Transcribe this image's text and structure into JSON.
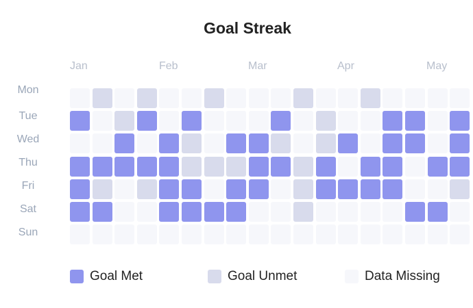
{
  "colors": {
    "met": "#8f95ee",
    "unmet": "#d8dbec",
    "missing": "#f6f7fb"
  },
  "chart_data": {
    "type": "heatmap",
    "title": "Goal Streak",
    "months": [
      "Jan",
      "Feb",
      "Mar",
      "Apr",
      "May"
    ],
    "days": [
      "Mon",
      "Tue",
      "Wed",
      "Thu",
      "Fri",
      "Sat",
      "Sun"
    ],
    "legend": [
      {
        "key": "met",
        "label": "Goal Met"
      },
      {
        "key": "unmet",
        "label": "Goal Unmet"
      },
      {
        "key": "missing",
        "label": "Data Missing"
      }
    ],
    "grid": [
      [
        "missing",
        "unmet",
        "missing",
        "unmet",
        "missing",
        "missing",
        "unmet",
        "missing",
        "missing",
        "missing",
        "unmet",
        "missing",
        "missing",
        "unmet",
        "missing",
        "missing",
        "missing",
        "missing"
      ],
      [
        "met",
        "missing",
        "unmet",
        "met",
        "missing",
        "met",
        "missing",
        "missing",
        "missing",
        "met",
        "missing",
        "unmet",
        "missing",
        "missing",
        "met",
        "met",
        "missing",
        "met"
      ],
      [
        "missing",
        "missing",
        "met",
        "missing",
        "met",
        "unmet",
        "missing",
        "met",
        "met",
        "unmet",
        "missing",
        "unmet",
        "met",
        "missing",
        "met",
        "met",
        "missing",
        "met"
      ],
      [
        "met",
        "met",
        "met",
        "met",
        "met",
        "unmet",
        "unmet",
        "unmet",
        "met",
        "met",
        "unmet",
        "met",
        "missing",
        "met",
        "met",
        "missing",
        "met",
        "met"
      ],
      [
        "met",
        "unmet",
        "missing",
        "unmet",
        "met",
        "met",
        "missing",
        "met",
        "met",
        "missing",
        "unmet",
        "met",
        "met",
        "met",
        "met",
        "missing",
        "missing",
        "unmet"
      ],
      [
        "met",
        "met",
        "missing",
        "missing",
        "met",
        "met",
        "met",
        "met",
        "missing",
        "missing",
        "unmet",
        "missing",
        "missing",
        "missing",
        "missing",
        "met",
        "met",
        "missing"
      ],
      [
        "missing",
        "missing",
        "missing",
        "missing",
        "missing",
        "missing",
        "missing",
        "missing",
        "missing",
        "missing",
        "missing",
        "missing",
        "missing",
        "missing",
        "missing",
        "missing",
        "missing",
        "missing"
      ]
    ]
  }
}
